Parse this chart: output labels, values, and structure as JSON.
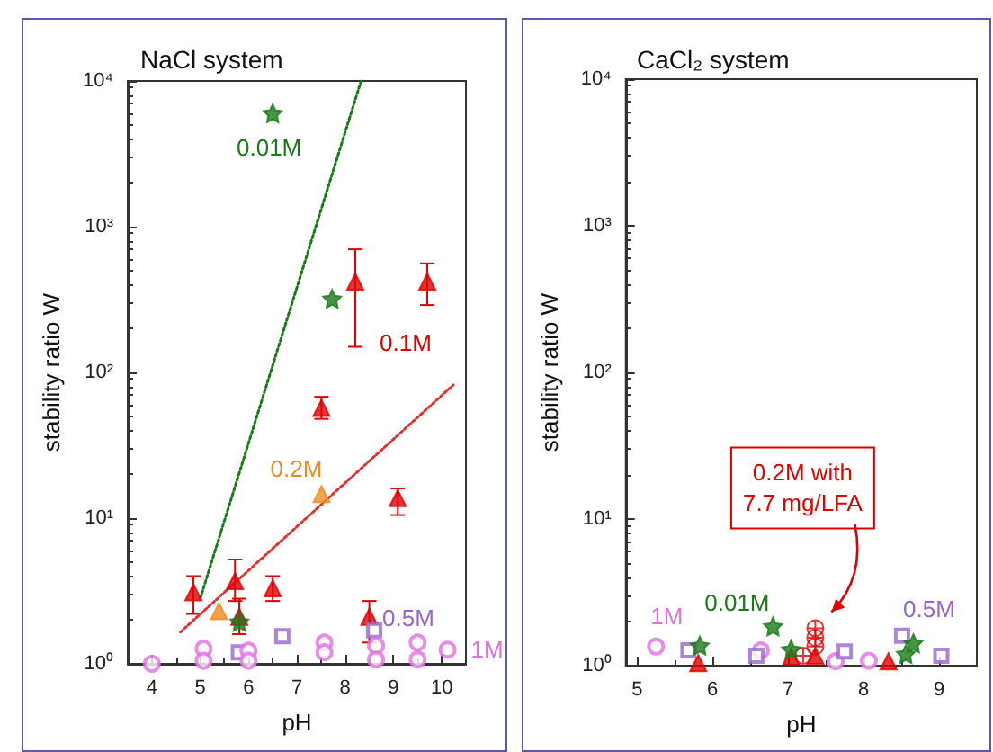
{
  "chart_data": [
    {
      "type": "scatter",
      "title": "NaCl system",
      "xlabel": "pH",
      "ylabel": "stability ratio W",
      "log": "y",
      "grid": false,
      "xlim": [
        3.5,
        10.5
      ],
      "xticks": [
        4,
        5,
        6,
        7,
        8,
        9,
        10
      ],
      "ylim": [
        1,
        10000
      ],
      "yticks": [
        {
          "value": 1,
          "label": "10⁰"
        },
        {
          "value": 10,
          "label": "10¹"
        },
        {
          "value": 100,
          "label": "10²"
        },
        {
          "value": 1000,
          "label": "10³"
        },
        {
          "value": 10000,
          "label": "10⁴"
        }
      ],
      "series": [
        {
          "name": "0.01M",
          "color": "#1a7a1a",
          "marker": "star",
          "x": [
            6.5,
            7.73,
            5.81
          ],
          "values": [
            6000,
            320,
            1.95
          ]
        },
        {
          "name": "0.1M",
          "color": "#e00000",
          "marker": "triangle",
          "x": [
            4.86,
            5.72,
            5.81,
            6.5,
            7.51,
            8.21,
            9.09,
            9.7,
            8.5
          ],
          "values": [
            3.1,
            3.7,
            2.1,
            3.3,
            57,
            420,
            13.7,
            420,
            2.1
          ],
          "errors": [
            [
              2.2,
              4.0
            ],
            [
              2.7,
              5.2
            ],
            [
              1.6,
              2.8
            ],
            [
              2.7,
              4.0
            ],
            [
              48,
              68
            ],
            [
              150,
              700
            ],
            [
              10.5,
              16
            ],
            [
              290,
              560
            ],
            [
              1.4,
              2.7
            ]
          ]
        },
        {
          "name": "0.2M",
          "color": "#f08c1e",
          "marker": "triangle",
          "x": [
            7.51,
            5.39
          ],
          "values": [
            14.6,
            2.3
          ]
        },
        {
          "name": "0.5M",
          "color": "#9966cc",
          "marker": "square",
          "x": [
            5.8,
            6.7,
            8.6
          ],
          "values": [
            1.2,
            1.55,
            1.7
          ]
        },
        {
          "name": "1M",
          "color": "#e070e0",
          "marker": "circle",
          "x": [
            4.0,
            5.07,
            5.07,
            6.0,
            6.0,
            7.57,
            7.57,
            8.64,
            8.64,
            9.5,
            9.5,
            10.12
          ],
          "values": [
            1.0,
            1.27,
            1.05,
            1.23,
            1.05,
            1.4,
            1.2,
            1.33,
            1.07,
            1.4,
            1.07,
            1.25
          ]
        },
        {
          "type": "line",
          "color": "#1a7a1a",
          "marker": "none",
          "line_style": "dotted",
          "x": [
            5.0,
            8.33
          ],
          "values": [
            2.8,
            10000
          ]
        },
        {
          "type": "line",
          "color": "#e03030",
          "marker": "none",
          "line_style": "dotted",
          "x": [
            4.59,
            10.24
          ],
          "values": [
            1.65,
            82
          ]
        }
      ]
    },
    {
      "type": "scatter",
      "title": "CaCl₂ system",
      "xlabel": "pH",
      "ylabel": "stability ratio W",
      "log": "y",
      "grid": false,
      "xlim": [
        4.85,
        9.5
      ],
      "xticks": [
        5,
        6,
        7,
        8,
        9
      ],
      "ylim": [
        1,
        10000
      ],
      "yticks": [
        {
          "value": 1,
          "label": "10⁰"
        },
        {
          "value": 10,
          "label": "10¹"
        },
        {
          "value": 100,
          "label": "10²"
        },
        {
          "value": 1000,
          "label": "10³"
        },
        {
          "value": 10000,
          "label": "10⁴"
        }
      ],
      "series": [
        {
          "name": "1M",
          "color": "#e070e0",
          "marker": "circle",
          "x": [
            5.25,
            6.64,
            7.63,
            8.07
          ],
          "values": [
            1.35,
            1.27,
            1.07,
            1.08
          ]
        },
        {
          "name": "0.5M",
          "color": "#9966cc",
          "marker": "square",
          "x": [
            5.68,
            6.58,
            7.75,
            8.51,
            9.03
          ],
          "values": [
            1.27,
            1.17,
            1.25,
            1.6,
            1.17
          ]
        },
        {
          "name": "0.01M",
          "color": "#1a7a1a",
          "marker": "star",
          "x": [
            5.83,
            6.8,
            7.04,
            8.56,
            8.66
          ],
          "values": [
            1.37,
            1.85,
            1.29,
            1.2,
            1.42
          ]
        },
        {
          "color": "#e00000",
          "marker": "triangle",
          "x": [
            5.81,
            7.04,
            7.36,
            8.33
          ],
          "values": [
            1.04,
            1.15,
            1.17,
            1.07
          ]
        },
        {
          "name": "0.2M with\n7.7 mg/LFA",
          "color": "#e00000",
          "marker": "cross",
          "x": [
            7.36,
            7.36,
            7.36,
            7.2
          ],
          "values": [
            1.8,
            1.55,
            1.35,
            1.17
          ]
        }
      ]
    }
  ]
}
